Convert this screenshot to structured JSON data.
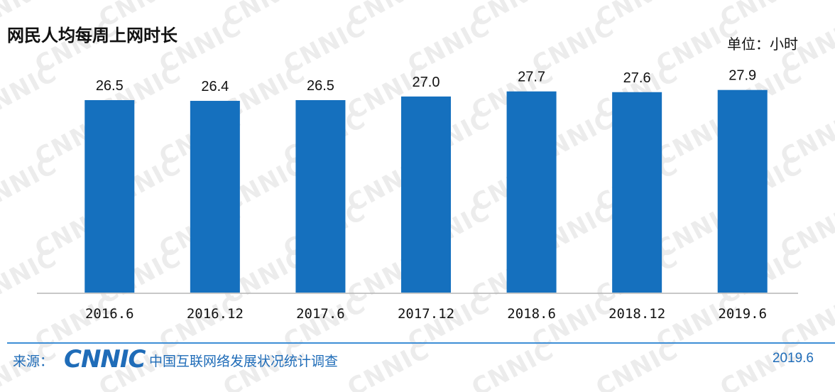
{
  "watermark_text": "CNNIC",
  "chart_data": {
    "type": "bar",
    "title": "网民人均每周上网时长",
    "unit_label": "单位：小时",
    "categories": [
      "2016.6",
      "2016.12",
      "2017.6",
      "2017.12",
      "2018.6",
      "2018.12",
      "2019.6"
    ],
    "values": [
      26.5,
      26.4,
      26.5,
      27.0,
      27.7,
      27.6,
      27.9
    ],
    "value_labels": [
      "26.5",
      "26.4",
      "26.5",
      "27.0",
      "27.7",
      "27.6",
      "27.9"
    ],
    "bar_color": "#1570be",
    "grid": false
  },
  "footer": {
    "source_label": "来源：",
    "logo_text": "CNNIC",
    "source_name": "中国互联网络发展状况统计调查",
    "date": "2019.6",
    "accent_color": "#1f6cb8"
  }
}
